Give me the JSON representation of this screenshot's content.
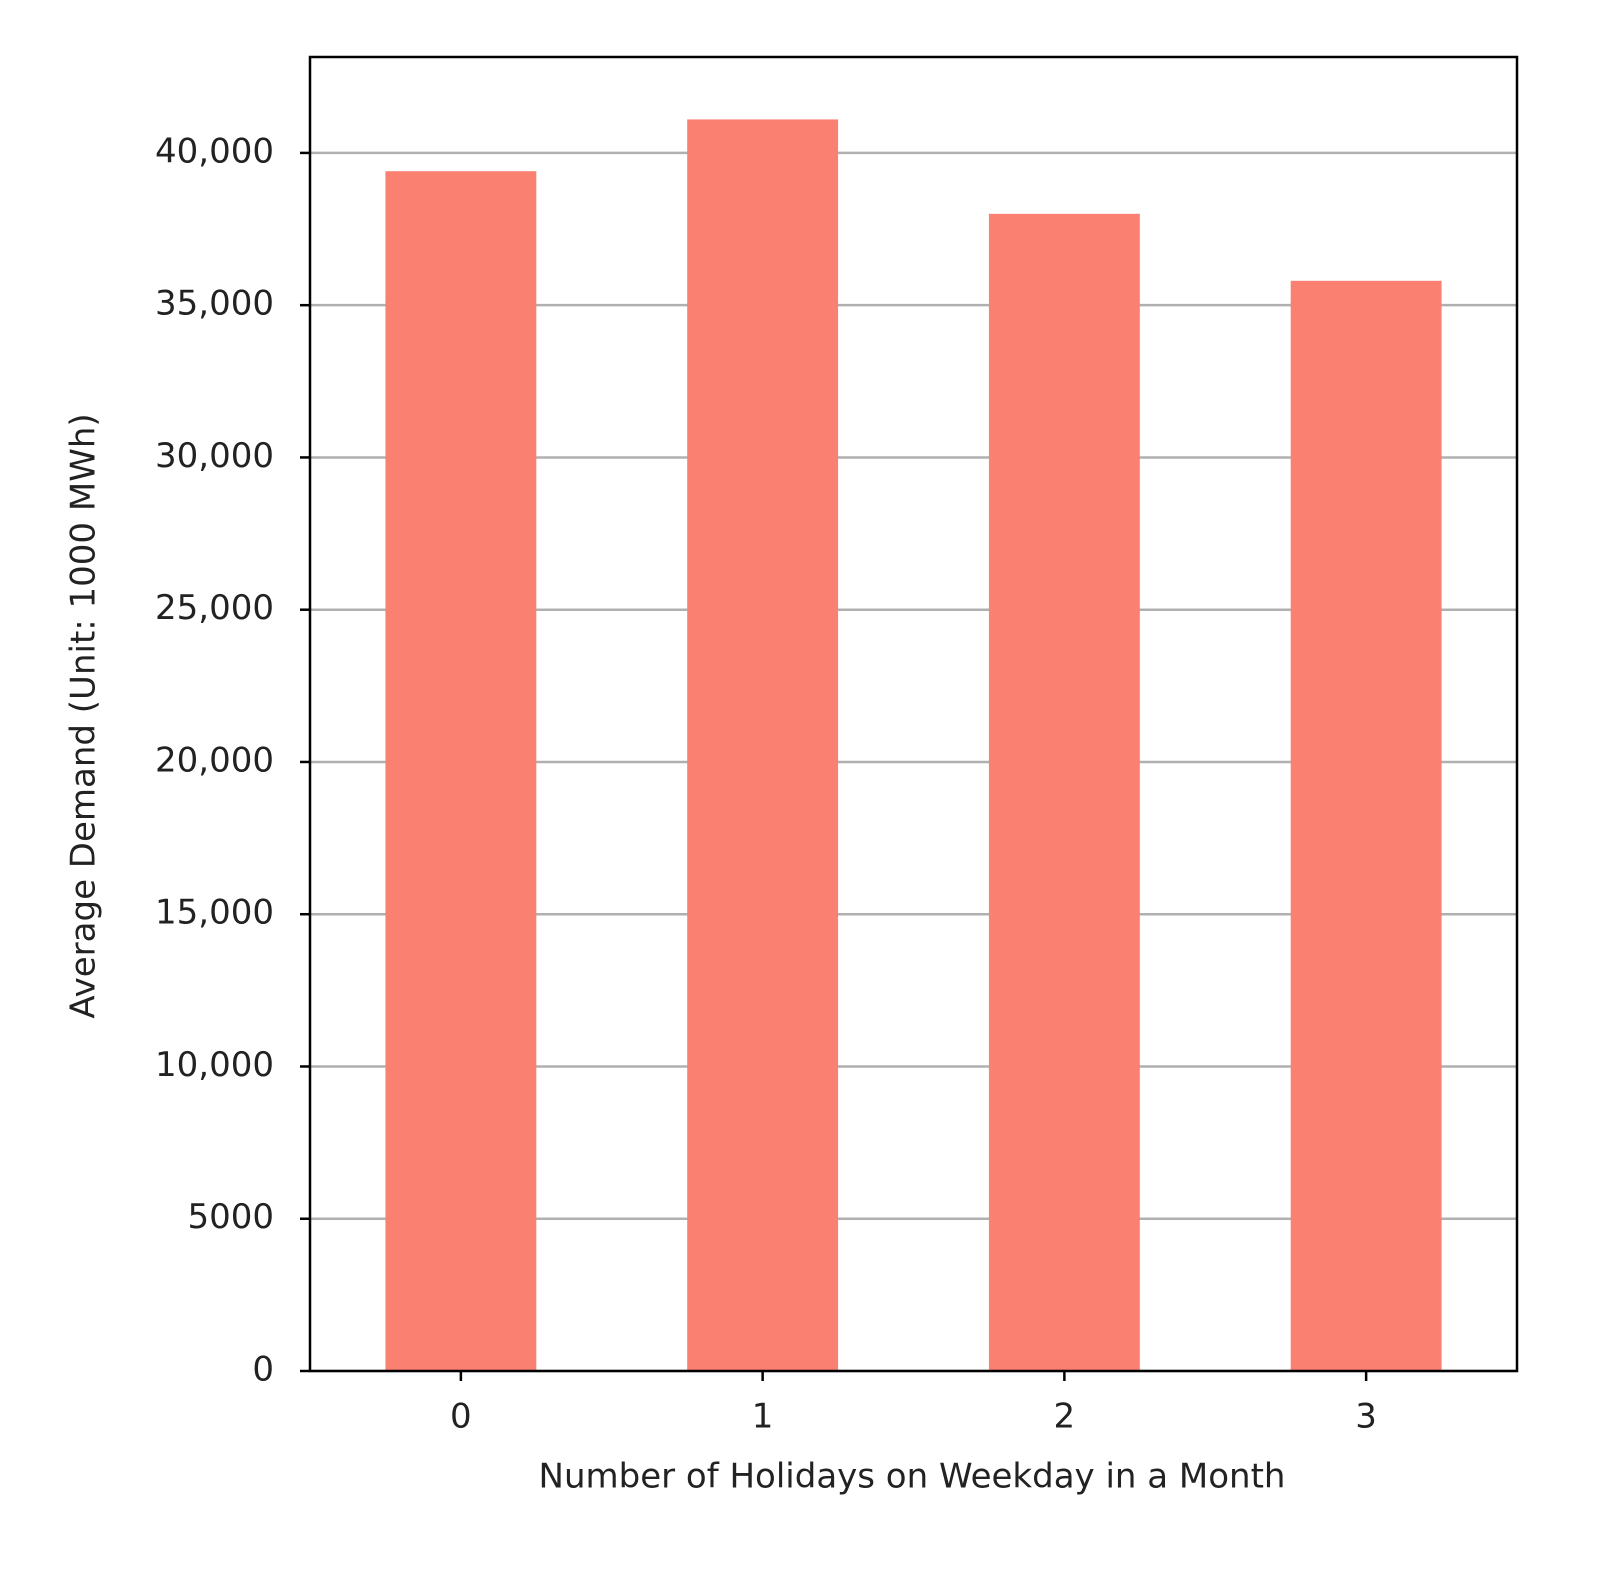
{
  "chart_data": {
    "type": "bar",
    "x_label": "Number of Holidays on Weekday in a Month",
    "y_label": "Average Demand (Unit: 1000 MWh)",
    "categories": [
      "0",
      "1",
      "2",
      "3"
    ],
    "values": [
      39400,
      41100,
      38000,
      35800
    ],
    "color": "#fa8072",
    "ylim": [
      0,
      43150
    ],
    "yticks": [
      0,
      5000,
      {
        "value": 10000,
        "label": "10,000"
      },
      {
        "value": 15000,
        "label": "15,000"
      },
      {
        "value": 20000,
        "label": "20,000"
      },
      {
        "value": 25000,
        "label": "25,000"
      },
      {
        "value": 30000,
        "label": "30,000"
      },
      {
        "value": 35000,
        "label": "35,000"
      },
      {
        "value": 40000,
        "label": "40,000"
      }
    ],
    "grid": true
  }
}
